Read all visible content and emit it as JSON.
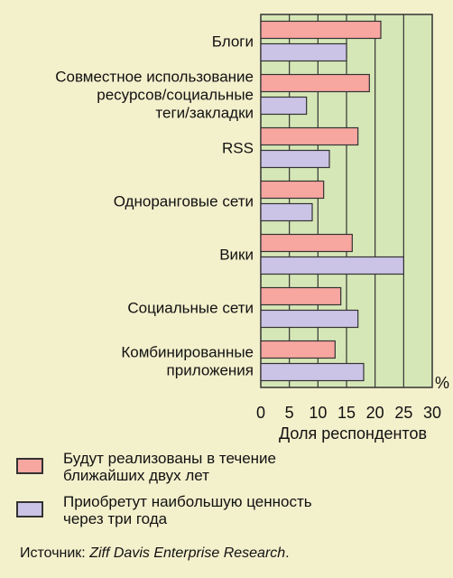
{
  "chart_data": {
    "type": "bar",
    "orientation": "horizontal",
    "categories": [
      "Блоги",
      "Совместное использование ресурсов/социальные теги/закладки",
      "RSS",
      "Одноранговые сети",
      "Вики",
      "Социальные сети",
      "Комбинированные приложения"
    ],
    "category_lines": [
      [
        "Блоги"
      ],
      [
        "Совместное использование",
        "ресурсов/социальные",
        "теги/закладки"
      ],
      [
        "RSS"
      ],
      [
        "Одноранговые сети"
      ],
      [
        "Вики"
      ],
      [
        "Социальные сети"
      ],
      [
        "Комбинированные",
        "приложения"
      ]
    ],
    "series": [
      {
        "name": "Будут реализованы в течение ближайших двух лет",
        "color": "#f7a6a0",
        "values": [
          21,
          19,
          17,
          11,
          16,
          14,
          13
        ]
      },
      {
        "name": "Приобретут наибольшую ценность через три года",
        "color": "#ccc4e6",
        "values": [
          15,
          8,
          12,
          9,
          25,
          17,
          18
        ]
      }
    ],
    "xlim": [
      0,
      30
    ],
    "xticks": [
      0,
      5,
      10,
      15,
      20,
      25,
      30
    ],
    "xlabel": "Доля респондентов",
    "unit": "%",
    "grid": true,
    "grid_background": "#d6e7b7",
    "legend_position": "bottom-left"
  },
  "legend": [
    {
      "text": "Будут реализованы в течение\nближайших двух лет",
      "color": "#f7a6a0"
    },
    {
      "text": "Приобретут наибольшую ценность\nчерез три года",
      "color": "#ccc4e6"
    }
  ],
  "source": {
    "prefix": "Источник: ",
    "name": "Ziff Davis Enterprise Research",
    "suffix": "."
  }
}
